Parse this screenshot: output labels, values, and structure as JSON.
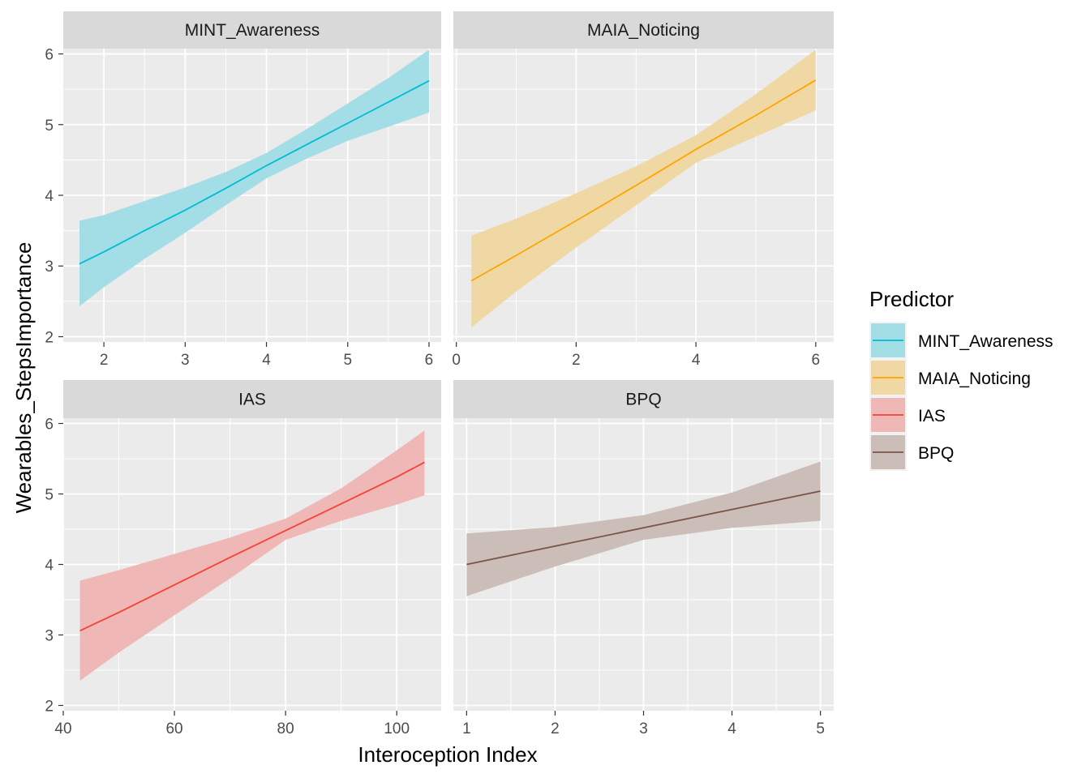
{
  "chart_data": {
    "type": "line",
    "xlabel": "Interoception Index",
    "ylabel": "Wearables_StepsImportance",
    "ylim": [
      2,
      6
    ],
    "yticks": [
      2,
      3,
      4,
      5,
      6
    ],
    "grid": true,
    "legend": {
      "title": "Predictor",
      "placement": "right",
      "items": [
        {
          "label": "MINT_Awareness",
          "color": "#00BCD4"
        },
        {
          "label": "MAIA_Noticing",
          "color": "#FFA500"
        },
        {
          "label": "IAS",
          "color": "#F44336"
        },
        {
          "label": "BPQ",
          "color": "#795548"
        }
      ]
    },
    "panels": [
      {
        "title": "MINT_Awareness",
        "color": "#00BCD4",
        "fill": "#A3DEE6",
        "xlim": [
          1.5,
          6.15
        ],
        "xticks": [
          2,
          3,
          4,
          5,
          6
        ],
        "x": [
          1.7,
          2.0,
          2.5,
          3.0,
          3.5,
          4.0,
          4.5,
          5.0,
          5.5,
          6.0
        ],
        "y": [
          3.03,
          3.2,
          3.5,
          3.79,
          4.1,
          4.42,
          4.72,
          5.02,
          5.32,
          5.62
        ],
        "lower": [
          2.43,
          2.7,
          3.1,
          3.47,
          3.86,
          4.24,
          4.52,
          4.77,
          4.97,
          5.17
        ],
        "upper": [
          3.64,
          3.72,
          3.92,
          4.11,
          4.33,
          4.6,
          4.94,
          5.3,
          5.66,
          6.06
        ]
      },
      {
        "title": "MAIA_Noticing",
        "color": "#FFA500",
        "fill": "#F0D8A4",
        "xlim": [
          -0.05,
          6.3
        ],
        "xticks": [
          0,
          2,
          4,
          6
        ],
        "x": [
          0.25,
          1.0,
          2.0,
          3.0,
          4.0,
          5.0,
          6.0
        ],
        "y": [
          2.79,
          3.15,
          3.64,
          4.14,
          4.65,
          5.13,
          5.63
        ],
        "lower": [
          2.13,
          2.64,
          3.26,
          3.86,
          4.46,
          4.83,
          5.2
        ],
        "upper": [
          3.43,
          3.67,
          4.03,
          4.41,
          4.85,
          5.43,
          6.06
        ]
      },
      {
        "title": "IAS",
        "color": "#F44336",
        "fill": "#EFB7B5",
        "xlim": [
          40,
          108
        ],
        "xticks": [
          40,
          60,
          80,
          100
        ],
        "x": [
          43,
          50,
          60,
          70,
          80,
          90,
          100,
          105
        ],
        "y": [
          3.06,
          3.32,
          3.71,
          4.1,
          4.48,
          4.86,
          5.24,
          5.45
        ],
        "lower": [
          2.35,
          2.75,
          3.28,
          3.8,
          4.35,
          4.62,
          4.85,
          4.98
        ],
        "upper": [
          3.77,
          3.92,
          4.15,
          4.38,
          4.65,
          5.08,
          5.62,
          5.9
        ]
      },
      {
        "title": "BPQ",
        "color": "#795548",
        "fill": "#CBBDB8",
        "xlim": [
          0.85,
          5.15
        ],
        "xticks": [
          1,
          2,
          3,
          4,
          5
        ],
        "x": [
          1,
          2,
          3,
          4,
          5
        ],
        "y": [
          4.0,
          4.26,
          4.52,
          4.78,
          5.04
        ],
        "lower": [
          3.55,
          3.97,
          4.35,
          4.52,
          4.62
        ],
        "upper": [
          4.44,
          4.53,
          4.7,
          5.02,
          5.46
        ]
      }
    ]
  }
}
